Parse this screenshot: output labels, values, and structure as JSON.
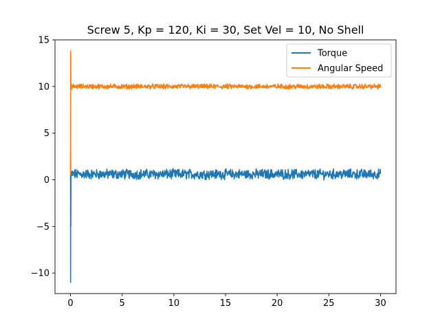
{
  "chart_data": {
    "type": "line",
    "title": "Screw 5, Kp = 120, Ki = 30, Set Vel = 10, No Shell",
    "xlabel": "",
    "ylabel": "",
    "xlim": [
      -1.5,
      31.5
    ],
    "ylim": [
      -12.2,
      15
    ],
    "xticks": [
      0,
      5,
      10,
      15,
      20,
      25,
      30
    ],
    "xtick_labels": [
      "0",
      "5",
      "10",
      "15",
      "20",
      "25",
      "30"
    ],
    "yticks": [
      -10,
      -5,
      0,
      5,
      10,
      15
    ],
    "ytick_labels": [
      "−10",
      "−5",
      "0",
      "5",
      "10",
      "15"
    ],
    "grid": false,
    "legend_position": "top-right",
    "series": [
      {
        "name": "Torque",
        "color": "#1f77b4",
        "transient": [
          [
            0,
            0
          ],
          [
            0.005,
            3
          ],
          [
            0.01,
            -11
          ],
          [
            0.015,
            2
          ],
          [
            0.03,
            -5
          ],
          [
            0.05,
            0.9
          ],
          [
            0.08,
            0.4
          ]
        ],
        "steady_mean": 0.6,
        "steady_spread": 0.45,
        "steady_range": [
          0.1,
          30
        ]
      },
      {
        "name": "Angular Speed",
        "color": "#ff7f0e",
        "transient": [
          [
            0,
            0.5
          ],
          [
            0.01,
            13.8
          ],
          [
            0.02,
            13.6
          ],
          [
            0.04,
            10.2
          ],
          [
            0.08,
            9.9
          ]
        ],
        "steady_mean": 10.0,
        "steady_spread": 0.22,
        "steady_range": [
          0.1,
          30
        ]
      }
    ]
  }
}
